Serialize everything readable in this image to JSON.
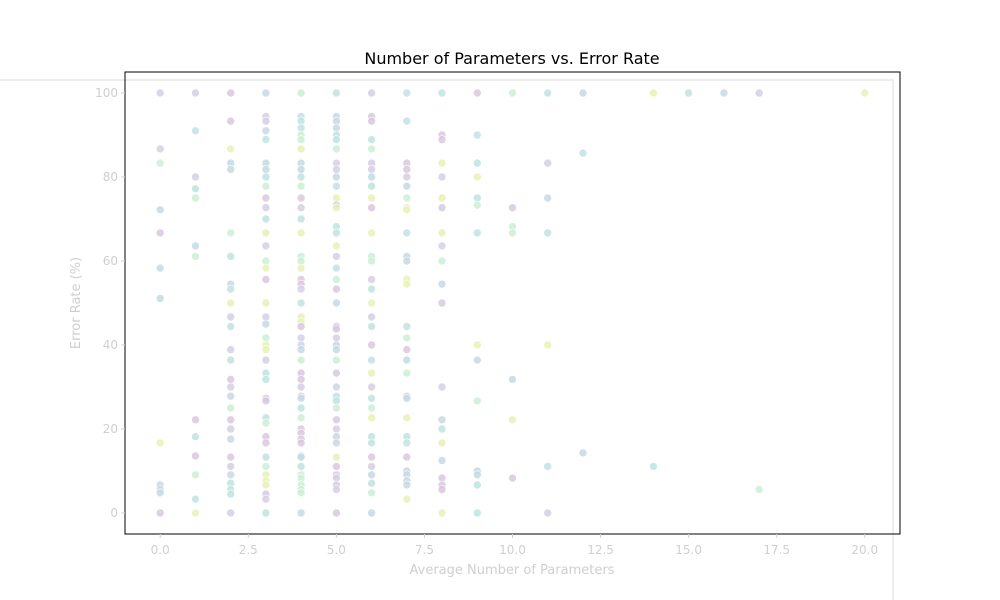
{
  "chart_data": {
    "type": "scatter",
    "title": "Number of Parameters vs. Error Rate",
    "xlabel": "Average Number of Parameters",
    "ylabel": "Error Rate (%)",
    "xlim": [
      -1,
      21
    ],
    "ylim": [
      -5,
      105
    ],
    "xticks": [
      "0.0",
      "2.5",
      "5.0",
      "7.5",
      "10.0",
      "12.5",
      "15.0",
      "17.5",
      "20.0"
    ],
    "yticks": [
      "0",
      "20",
      "40",
      "60",
      "80",
      "100"
    ],
    "grid": false,
    "legend": false,
    "colors": [
      "#e8f2b6",
      "#cdeed6",
      "#bfe4e0",
      "#c7d9e4",
      "#d6cfe4",
      "#d9c8de"
    ],
    "points": [
      [
        0,
        100
      ],
      [
        0,
        86.7
      ],
      [
        0,
        83.3
      ],
      [
        0,
        72.2
      ],
      [
        0,
        66.7
      ],
      [
        0,
        58.3
      ],
      [
        0,
        51.1
      ],
      [
        0,
        16.7
      ],
      [
        0,
        6.7
      ],
      [
        0,
        5.6
      ],
      [
        0,
        4.8
      ],
      [
        0,
        0
      ],
      [
        1,
        100
      ],
      [
        1,
        91
      ],
      [
        1,
        80
      ],
      [
        1,
        77.2
      ],
      [
        1,
        75
      ],
      [
        1,
        63.6
      ],
      [
        1,
        61.1
      ],
      [
        1,
        22.2
      ],
      [
        1,
        18.2
      ],
      [
        1,
        13.6
      ],
      [
        1,
        9.1
      ],
      [
        1,
        3.3
      ],
      [
        1,
        0
      ],
      [
        2,
        100
      ],
      [
        2,
        93.3
      ],
      [
        2,
        86.7
      ],
      [
        2,
        83.3
      ],
      [
        2,
        81.8
      ],
      [
        2,
        66.7
      ],
      [
        2,
        61.1
      ],
      [
        2,
        54.5
      ],
      [
        2,
        53.3
      ],
      [
        2,
        50
      ],
      [
        2,
        46.7
      ],
      [
        2,
        44.4
      ],
      [
        2,
        38.9
      ],
      [
        2,
        36.4
      ],
      [
        2,
        31.8
      ],
      [
        2,
        30
      ],
      [
        2,
        27.8
      ],
      [
        2,
        25
      ],
      [
        2,
        22.2
      ],
      [
        2,
        20
      ],
      [
        2,
        17.6
      ],
      [
        2,
        13.3
      ],
      [
        2,
        11.1
      ],
      [
        2,
        9.1
      ],
      [
        2,
        7.1
      ],
      [
        2,
        5.6
      ],
      [
        2,
        4.5
      ],
      [
        2,
        0
      ],
      [
        3,
        100
      ],
      [
        3,
        94.4
      ],
      [
        3,
        93.3
      ],
      [
        3,
        91
      ],
      [
        3,
        88.9
      ],
      [
        3,
        83.3
      ],
      [
        3,
        81.8
      ],
      [
        3,
        80
      ],
      [
        3,
        77.8
      ],
      [
        3,
        75
      ],
      [
        3,
        72.7
      ],
      [
        3,
        70
      ],
      [
        3,
        66.7
      ],
      [
        3,
        63.6
      ],
      [
        3,
        60
      ],
      [
        3,
        58.3
      ],
      [
        3,
        55.6
      ],
      [
        3,
        50
      ],
      [
        3,
        46.7
      ],
      [
        3,
        45
      ],
      [
        3,
        41.7
      ],
      [
        3,
        40
      ],
      [
        3,
        38.9
      ],
      [
        3,
        36.4
      ],
      [
        3,
        33.3
      ],
      [
        3,
        31.8
      ],
      [
        3,
        27.3
      ],
      [
        3,
        26.7
      ],
      [
        3,
        22.7
      ],
      [
        3,
        21.4
      ],
      [
        3,
        18.2
      ],
      [
        3,
        16.7
      ],
      [
        3,
        13.3
      ],
      [
        3,
        11.1
      ],
      [
        3,
        9.1
      ],
      [
        3,
        7.7
      ],
      [
        3,
        6.7
      ],
      [
        3,
        4.5
      ],
      [
        3,
        3.3
      ],
      [
        3,
        0
      ],
      [
        4,
        100
      ],
      [
        4,
        94.4
      ],
      [
        4,
        93.3
      ],
      [
        4,
        91.7
      ],
      [
        4,
        90
      ],
      [
        4,
        88.9
      ],
      [
        4,
        86.7
      ],
      [
        4,
        83.3
      ],
      [
        4,
        81.8
      ],
      [
        4,
        80
      ],
      [
        4,
        77.8
      ],
      [
        4,
        75
      ],
      [
        4,
        72.7
      ],
      [
        4,
        70
      ],
      [
        4,
        66.7
      ],
      [
        4,
        61.1
      ],
      [
        4,
        60
      ],
      [
        4,
        58.3
      ],
      [
        4,
        55.6
      ],
      [
        4,
        54.5
      ],
      [
        4,
        53.3
      ],
      [
        4,
        50
      ],
      [
        4,
        46.7
      ],
      [
        4,
        45.5
      ],
      [
        4,
        44.4
      ],
      [
        4,
        41.7
      ],
      [
        4,
        40
      ],
      [
        4,
        38.9
      ],
      [
        4,
        36.4
      ],
      [
        4,
        33.3
      ],
      [
        4,
        31.8
      ],
      [
        4,
        30
      ],
      [
        4,
        27.8
      ],
      [
        4,
        27.3
      ],
      [
        4,
        25
      ],
      [
        4,
        22.7
      ],
      [
        4,
        20
      ],
      [
        4,
        19
      ],
      [
        4,
        17.6
      ],
      [
        4,
        16.7
      ],
      [
        4,
        13.6
      ],
      [
        4,
        13.3
      ],
      [
        4,
        11.1
      ],
      [
        4,
        9.1
      ],
      [
        4,
        8.3
      ],
      [
        4,
        6.7
      ],
      [
        4,
        5.6
      ],
      [
        4,
        4.8
      ],
      [
        4,
        0
      ],
      [
        5,
        100
      ],
      [
        5,
        94.4
      ],
      [
        5,
        93.3
      ],
      [
        5,
        91.7
      ],
      [
        5,
        90
      ],
      [
        5,
        88.9
      ],
      [
        5,
        86.7
      ],
      [
        5,
        83.3
      ],
      [
        5,
        81.8
      ],
      [
        5,
        80
      ],
      [
        5,
        77.8
      ],
      [
        5,
        75
      ],
      [
        5,
        73.3
      ],
      [
        5,
        72.7
      ],
      [
        5,
        68.2
      ],
      [
        5,
        66.7
      ],
      [
        5,
        63.6
      ],
      [
        5,
        61.1
      ],
      [
        5,
        58.3
      ],
      [
        5,
        55.6
      ],
      [
        5,
        53.3
      ],
      [
        5,
        50
      ],
      [
        5,
        44.4
      ],
      [
        5,
        43.8
      ],
      [
        5,
        41.7
      ],
      [
        5,
        40
      ],
      [
        5,
        38.9
      ],
      [
        5,
        36.4
      ],
      [
        5,
        33.3
      ],
      [
        5,
        30
      ],
      [
        5,
        27.8
      ],
      [
        5,
        26.7
      ],
      [
        5,
        25
      ],
      [
        5,
        22.2
      ],
      [
        5,
        20
      ],
      [
        5,
        18.2
      ],
      [
        5,
        16.7
      ],
      [
        5,
        13.3
      ],
      [
        5,
        11.1
      ],
      [
        5,
        9.1
      ],
      [
        5,
        8.3
      ],
      [
        5,
        6.7
      ],
      [
        5,
        5.6
      ],
      [
        5,
        0
      ],
      [
        6,
        100
      ],
      [
        6,
        94.4
      ],
      [
        6,
        93.3
      ],
      [
        6,
        88.9
      ],
      [
        6,
        86.7
      ],
      [
        6,
        83.3
      ],
      [
        6,
        81.8
      ],
      [
        6,
        80
      ],
      [
        6,
        77.8
      ],
      [
        6,
        75
      ],
      [
        6,
        72.7
      ],
      [
        6,
        66.7
      ],
      [
        6,
        61.1
      ],
      [
        6,
        60
      ],
      [
        6,
        55.6
      ],
      [
        6,
        53.3
      ],
      [
        6,
        50
      ],
      [
        6,
        46.7
      ],
      [
        6,
        44.4
      ],
      [
        6,
        40
      ],
      [
        6,
        36.4
      ],
      [
        6,
        33.3
      ],
      [
        6,
        30
      ],
      [
        6,
        27.3
      ],
      [
        6,
        25
      ],
      [
        6,
        22.7
      ],
      [
        6,
        18.2
      ],
      [
        6,
        16.7
      ],
      [
        6,
        13.3
      ],
      [
        6,
        11.1
      ],
      [
        6,
        9.1
      ],
      [
        6,
        7.1
      ],
      [
        6,
        4.8
      ],
      [
        6,
        0
      ],
      [
        7,
        100
      ],
      [
        7,
        93.3
      ],
      [
        7,
        83.3
      ],
      [
        7,
        81.8
      ],
      [
        7,
        80
      ],
      [
        7,
        77.8
      ],
      [
        7,
        75
      ],
      [
        7,
        72.7
      ],
      [
        7,
        72.2
      ],
      [
        7,
        66.7
      ],
      [
        7,
        61.1
      ],
      [
        7,
        60
      ],
      [
        7,
        55.6
      ],
      [
        7,
        54.5
      ],
      [
        7,
        44.4
      ],
      [
        7,
        41.7
      ],
      [
        7,
        38.9
      ],
      [
        7,
        36.4
      ],
      [
        7,
        33.3
      ],
      [
        7,
        27.8
      ],
      [
        7,
        27.3
      ],
      [
        7,
        22.7
      ],
      [
        7,
        18.2
      ],
      [
        7,
        16.7
      ],
      [
        7,
        13.3
      ],
      [
        7,
        10
      ],
      [
        7,
        9.1
      ],
      [
        7,
        7.7
      ],
      [
        7,
        6.7
      ],
      [
        7,
        3.3
      ],
      [
        8,
        100
      ],
      [
        8,
        90
      ],
      [
        8,
        88.9
      ],
      [
        8,
        83.3
      ],
      [
        8,
        80
      ],
      [
        8,
        75
      ],
      [
        8,
        72.7
      ],
      [
        8,
        66.7
      ],
      [
        8,
        63.6
      ],
      [
        8,
        60
      ],
      [
        8,
        54.5
      ],
      [
        8,
        50
      ],
      [
        8,
        30
      ],
      [
        8,
        22.2
      ],
      [
        8,
        20
      ],
      [
        8,
        16.7
      ],
      [
        8,
        12.5
      ],
      [
        8,
        8.3
      ],
      [
        8,
        6.7
      ],
      [
        8,
        5.6
      ],
      [
        8,
        0
      ],
      [
        9,
        100
      ],
      [
        9,
        90
      ],
      [
        9,
        83.3
      ],
      [
        9,
        80
      ],
      [
        9,
        75
      ],
      [
        9,
        73.3
      ],
      [
        9,
        66.7
      ],
      [
        9,
        40
      ],
      [
        9,
        36.4
      ],
      [
        9,
        26.7
      ],
      [
        9,
        10
      ],
      [
        9,
        9.1
      ],
      [
        9,
        6.7
      ],
      [
        9,
        0
      ],
      [
        10,
        100
      ],
      [
        10,
        72.7
      ],
      [
        10,
        68.2
      ],
      [
        10,
        66.7
      ],
      [
        10,
        31.8
      ],
      [
        10,
        22.2
      ],
      [
        10,
        8.3
      ],
      [
        11,
        100
      ],
      [
        11,
        83.3
      ],
      [
        11,
        75
      ],
      [
        11,
        66.7
      ],
      [
        11,
        40
      ],
      [
        11,
        11.1
      ],
      [
        11,
        0
      ],
      [
        12,
        100
      ],
      [
        12,
        85.7
      ],
      [
        12,
        14.3
      ],
      [
        14,
        100
      ],
      [
        14,
        11.1
      ],
      [
        15,
        100
      ],
      [
        16,
        100
      ],
      [
        17,
        100
      ],
      [
        17,
        5.6
      ],
      [
        20,
        100
      ]
    ]
  }
}
